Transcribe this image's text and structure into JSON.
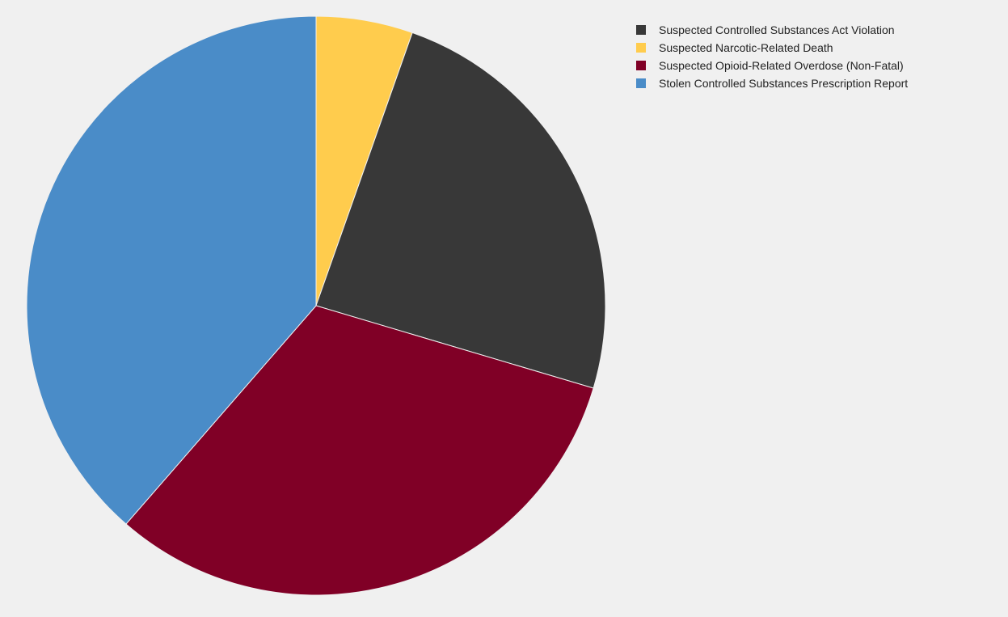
{
  "chart_data": {
    "type": "pie",
    "title": "",
    "legend_position": "top-right",
    "start_angle_deg": 0,
    "direction": "clockwise",
    "slices": [
      {
        "label": "Suspected Narcotic-Related Death",
        "value": 5.4,
        "color": "#ffcc4d"
      },
      {
        "label": "Suspected Controlled Substances Act Violation",
        "value": 24.2,
        "color": "#383838"
      },
      {
        "label": "Suspected Opioid-Related Overdose (Non-Fatal)",
        "value": 31.8,
        "color": "#800026"
      },
      {
        "label": "Stolen Controlled Substances Prescription Report",
        "value": 38.6,
        "color": "#4a8cc8"
      }
    ],
    "legend_order": [
      "Suspected Controlled Substances Act Violation",
      "Suspected Narcotic-Related Death",
      "Suspected Opioid-Related Overdose (Non-Fatal)",
      "Stolen Controlled Substances Prescription Report"
    ]
  }
}
